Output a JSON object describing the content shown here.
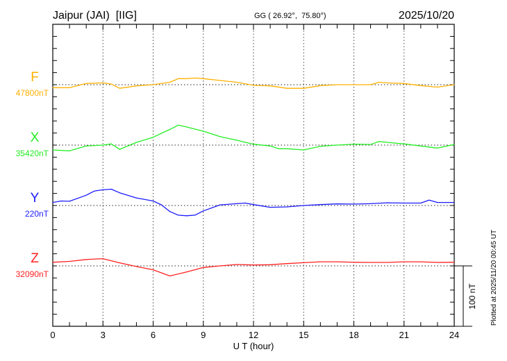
{
  "chart_data": {
    "type": "line",
    "title": "Jaipur (JAI)  [IIG]",
    "coordinates": "GG ( 26.92°,  75.80°)",
    "date": "2025/10/20",
    "xlabel": "U T (hour)",
    "xlim": [
      0,
      24
    ],
    "xticks": [
      "0",
      "3",
      "6",
      "9",
      "12",
      "15",
      "18",
      "21",
      "24"
    ],
    "scale_label": "100 nT",
    "scale_value_nT": 100,
    "tick_interval_nT": 20,
    "plotted_note": "Plotted at 2025/11/20 00:45 UT",
    "grid": "dotted verticals every 3 h; dotted baseline per component",
    "series": [
      {
        "name": "F",
        "baseline_label": "47800nT",
        "color": "#ffb000",
        "x": [
          0,
          1,
          2,
          3,
          3.5,
          4,
          5,
          6,
          7,
          7.5,
          8,
          8.5,
          9,
          10,
          11,
          12,
          13,
          14,
          15,
          16,
          17,
          18,
          19,
          19.5,
          20,
          21,
          22,
          23,
          24
        ],
        "y": [
          -5,
          -5,
          2,
          3,
          1,
          -6,
          -2,
          0,
          4,
          10,
          10,
          11,
          10,
          7,
          4,
          -1,
          -2,
          -6,
          -6,
          -1.5,
          0,
          0,
          0,
          4,
          3,
          2,
          -1.5,
          -4,
          0
        ]
      },
      {
        "name": "X",
        "baseline_label": "35420nT",
        "color": "#22ee22",
        "x": [
          0,
          1,
          2,
          3,
          3.5,
          4,
          5,
          6,
          7,
          7.5,
          8,
          9,
          10,
          11,
          12,
          13,
          13.5,
          14,
          15,
          16,
          17,
          18,
          19,
          19.5,
          20,
          21,
          22,
          23,
          24
        ],
        "y": [
          -8,
          -9.5,
          -1.5,
          0,
          2,
          -7,
          4.5,
          13,
          26,
          33,
          30,
          23,
          14,
          8,
          1.5,
          -1.5,
          -6,
          -6,
          -8,
          -2,
          0,
          1.5,
          1,
          6,
          4.5,
          2,
          -1.5,
          -5,
          1
        ]
      },
      {
        "name": "Y",
        "baseline_label": "220nT",
        "color": "#1a1aff",
        "x": [
          0,
          0.5,
          1,
          2,
          2.5,
          3,
          3.5,
          4,
          5,
          6,
          6.5,
          7,
          7.5,
          8,
          8.5,
          9,
          10,
          11,
          11.5,
          12,
          13,
          14,
          15,
          16,
          17,
          18,
          19,
          20,
          21,
          22,
          22.5,
          23,
          24
        ],
        "y": [
          5,
          7.5,
          7,
          17,
          24,
          26,
          27,
          21,
          12.5,
          7.5,
          1,
          -10,
          -16,
          -17,
          -16,
          -9,
          1,
          3,
          4,
          1.5,
          -3,
          -2.3,
          0,
          1.5,
          2.7,
          2.3,
          3,
          4.5,
          4,
          4,
          9,
          5,
          5
        ]
      },
      {
        "name": "Z",
        "baseline_label": "32090nT",
        "color": "#ff2020",
        "x": [
          0,
          1,
          2,
          3,
          4,
          5,
          6,
          7,
          8,
          9,
          10,
          11,
          12,
          13,
          14,
          15,
          16,
          17,
          18,
          19,
          20,
          21,
          22,
          23,
          24
        ],
        "y": [
          6,
          7.5,
          10.6,
          12,
          5,
          -1,
          -6.4,
          -16.7,
          -10,
          -2.7,
          0,
          2.3,
          1.5,
          2,
          3.8,
          5.3,
          6.8,
          6.8,
          6,
          5.7,
          5.7,
          6.8,
          6.8,
          5.7,
          6
        ]
      }
    ]
  }
}
